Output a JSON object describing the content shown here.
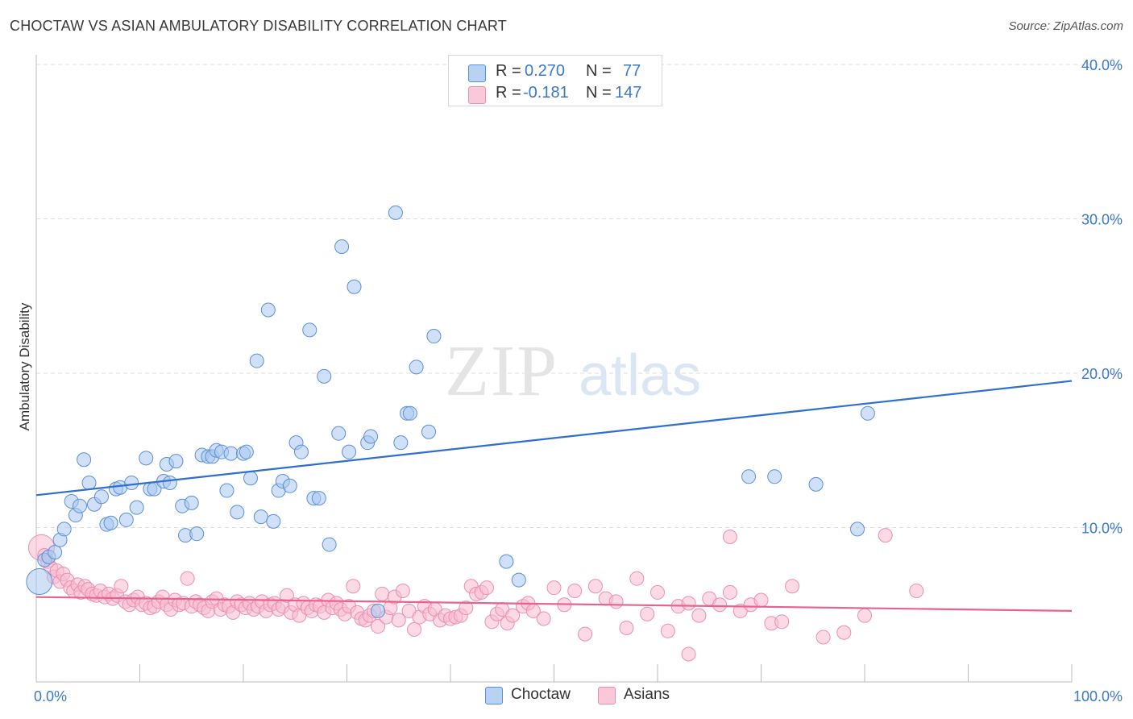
{
  "header": {
    "title": "CHOCTAW VS ASIAN AMBULATORY DISABILITY CORRELATION CHART",
    "source": "Source: ZipAtlas.com"
  },
  "watermark": {
    "zip": "ZIP",
    "atlas": "atlas"
  },
  "legend": {
    "rows": [
      {
        "r_label": "R =",
        "r_value": "0.270",
        "n_label": "N =",
        "n_value": "77"
      },
      {
        "r_label": "R =",
        "r_value": "-0.181",
        "n_label": "N =",
        "n_value": "147"
      }
    ]
  },
  "bottom_legend": {
    "items": [
      {
        "label": "Choctaw"
      },
      {
        "label": "Asians"
      }
    ]
  },
  "colors": {
    "choctaw_fill": "#a9c8f0",
    "choctaw_stroke": "#5b8fd6",
    "choctaw_line": "#2f6fd0",
    "asians_fill": "#f7bcd0",
    "asians_stroke": "#ea8fb0",
    "asians_line": "#e8628f",
    "tick_label": "#3a78c9",
    "grid": "#dddddd"
  },
  "chart_data": {
    "type": "scatter",
    "title": "CHOCTAW VS ASIAN AMBULATORY DISABILITY CORRELATION CHART",
    "xlabel": "",
    "ylabel": "Ambulatory Disability",
    "xlim": [
      0,
      100
    ],
    "ylim": [
      0,
      40
    ],
    "x_tick_labels": [
      "0.0%",
      "100.0%"
    ],
    "y_ticks": [
      10,
      20,
      30,
      40
    ],
    "y_tick_labels": [
      "10.0%",
      "20.0%",
      "30.0%",
      "40.0%"
    ],
    "grid": true,
    "legend_position": "top-center",
    "series": [
      {
        "name": "Choctaw",
        "r": 0.27,
        "n": 77,
        "trend": {
          "x": [
            0,
            100
          ],
          "y": [
            12.1,
            19.5
          ]
        },
        "points": [
          [
            0.3,
            6.5
          ],
          [
            0.8,
            7.9
          ],
          [
            1.2,
            8.1
          ],
          [
            1.8,
            8.4
          ],
          [
            2.3,
            9.2
          ],
          [
            2.7,
            9.9
          ],
          [
            3.4,
            11.7
          ],
          [
            3.8,
            10.8
          ],
          [
            4.2,
            11.4
          ],
          [
            4.6,
            14.4
          ],
          [
            5.1,
            12.9
          ],
          [
            5.6,
            11.5
          ],
          [
            6.3,
            12.0
          ],
          [
            6.8,
            10.2
          ],
          [
            7.2,
            10.3
          ],
          [
            7.7,
            12.5
          ],
          [
            8.1,
            12.6
          ],
          [
            8.7,
            10.5
          ],
          [
            9.2,
            12.9
          ],
          [
            9.7,
            11.3
          ],
          [
            10.6,
            14.5
          ],
          [
            11.0,
            12.5
          ],
          [
            11.4,
            12.5
          ],
          [
            12.3,
            13.0
          ],
          [
            12.6,
            14.1
          ],
          [
            12.9,
            12.9
          ],
          [
            13.5,
            14.3
          ],
          [
            14.1,
            11.4
          ],
          [
            14.4,
            9.5
          ],
          [
            15.0,
            11.6
          ],
          [
            15.5,
            9.6
          ],
          [
            16.0,
            14.7
          ],
          [
            16.6,
            14.6
          ],
          [
            17.0,
            14.6
          ],
          [
            17.4,
            15.0
          ],
          [
            17.9,
            14.9
          ],
          [
            18.4,
            12.4
          ],
          [
            18.8,
            14.8
          ],
          [
            19.4,
            11.0
          ],
          [
            20.0,
            14.8
          ],
          [
            20.3,
            14.9
          ],
          [
            20.7,
            13.2
          ],
          [
            21.3,
            20.8
          ],
          [
            21.7,
            10.7
          ],
          [
            22.4,
            24.1
          ],
          [
            22.9,
            10.4
          ],
          [
            23.4,
            12.4
          ],
          [
            23.8,
            13.0
          ],
          [
            24.5,
            12.7
          ],
          [
            25.1,
            15.5
          ],
          [
            25.6,
            14.9
          ],
          [
            26.4,
            22.8
          ],
          [
            26.8,
            11.9
          ],
          [
            27.3,
            11.9
          ],
          [
            27.8,
            19.8
          ],
          [
            28.3,
            8.9
          ],
          [
            29.2,
            16.1
          ],
          [
            29.5,
            28.2
          ],
          [
            30.2,
            14.9
          ],
          [
            30.7,
            25.6
          ],
          [
            32.0,
            15.5
          ],
          [
            32.3,
            15.9
          ],
          [
            33.0,
            4.6
          ],
          [
            34.7,
            30.4
          ],
          [
            35.2,
            15.5
          ],
          [
            35.8,
            17.4
          ],
          [
            36.1,
            17.4
          ],
          [
            36.7,
            20.4
          ],
          [
            37.9,
            16.2
          ],
          [
            38.4,
            22.4
          ],
          [
            45.4,
            7.8
          ],
          [
            46.6,
            6.6
          ],
          [
            71.3,
            13.3
          ],
          [
            75.3,
            12.8
          ],
          [
            79.3,
            9.9
          ],
          [
            80.3,
            17.4
          ],
          [
            68.8,
            13.3
          ]
        ]
      },
      {
        "name": "Asians",
        "r": -0.181,
        "n": 147,
        "trend": {
          "x": [
            0,
            100
          ],
          "y": [
            5.5,
            4.6
          ]
        },
        "points": [
          [
            0.5,
            8.7
          ],
          [
            0.8,
            8.2
          ],
          [
            1.1,
            7.8
          ],
          [
            1.4,
            7.4
          ],
          [
            1.7,
            6.8
          ],
          [
            2.0,
            7.2
          ],
          [
            2.3,
            6.5
          ],
          [
            2.6,
            7.0
          ],
          [
            3.0,
            6.6
          ],
          [
            3.3,
            6.1
          ],
          [
            3.6,
            5.9
          ],
          [
            4.0,
            6.3
          ],
          [
            4.3,
            5.8
          ],
          [
            4.7,
            6.2
          ],
          [
            5.0,
            6.0
          ],
          [
            5.4,
            5.7
          ],
          [
            5.8,
            5.6
          ],
          [
            6.2,
            5.9
          ],
          [
            6.6,
            5.5
          ],
          [
            7.0,
            5.7
          ],
          [
            7.4,
            5.4
          ],
          [
            7.8,
            5.6
          ],
          [
            8.2,
            6.2
          ],
          [
            8.6,
            5.2
          ],
          [
            9.0,
            5.0
          ],
          [
            9.4,
            5.3
          ],
          [
            9.8,
            5.5
          ],
          [
            10.2,
            5.0
          ],
          [
            10.6,
            5.1
          ],
          [
            11.0,
            4.8
          ],
          [
            11.4,
            4.9
          ],
          [
            11.8,
            5.2
          ],
          [
            12.2,
            5.5
          ],
          [
            12.6,
            5.0
          ],
          [
            13.0,
            4.7
          ],
          [
            13.4,
            5.3
          ],
          [
            13.8,
            5.0
          ],
          [
            14.2,
            5.1
          ],
          [
            14.6,
            6.7
          ],
          [
            15.0,
            4.9
          ],
          [
            15.4,
            5.2
          ],
          [
            15.8,
            5.0
          ],
          [
            16.2,
            4.8
          ],
          [
            16.6,
            4.6
          ],
          [
            17.0,
            5.2
          ],
          [
            17.4,
            5.4
          ],
          [
            17.8,
            4.7
          ],
          [
            18.2,
            5.0
          ],
          [
            18.6,
            4.9
          ],
          [
            19.0,
            4.5
          ],
          [
            19.4,
            5.2
          ],
          [
            19.8,
            5.0
          ],
          [
            20.2,
            4.8
          ],
          [
            20.6,
            5.1
          ],
          [
            21.0,
            4.7
          ],
          [
            21.4,
            4.9
          ],
          [
            21.8,
            5.2
          ],
          [
            22.2,
            4.6
          ],
          [
            22.6,
            5.0
          ],
          [
            23.0,
            5.1
          ],
          [
            23.4,
            4.7
          ],
          [
            23.8,
            4.9
          ],
          [
            24.2,
            5.6
          ],
          [
            24.6,
            4.5
          ],
          [
            25.0,
            5.0
          ],
          [
            25.4,
            4.3
          ],
          [
            25.8,
            5.1
          ],
          [
            26.2,
            4.8
          ],
          [
            26.6,
            4.6
          ],
          [
            27.0,
            5.0
          ],
          [
            27.4,
            4.9
          ],
          [
            27.8,
            4.5
          ],
          [
            28.2,
            5.3
          ],
          [
            28.6,
            4.8
          ],
          [
            29.0,
            5.1
          ],
          [
            29.4,
            4.7
          ],
          [
            29.8,
            4.4
          ],
          [
            30.2,
            4.9
          ],
          [
            30.6,
            6.2
          ],
          [
            31.0,
            4.5
          ],
          [
            31.4,
            4.1
          ],
          [
            31.8,
            4.0
          ],
          [
            32.2,
            4.3
          ],
          [
            32.6,
            4.6
          ],
          [
            33.0,
            3.6
          ],
          [
            33.4,
            5.7
          ],
          [
            33.8,
            4.2
          ],
          [
            34.2,
            4.8
          ],
          [
            34.6,
            5.5
          ],
          [
            35.0,
            4.0
          ],
          [
            35.4,
            5.9
          ],
          [
            36.0,
            4.6
          ],
          [
            36.5,
            3.4
          ],
          [
            37.0,
            4.2
          ],
          [
            37.5,
            4.9
          ],
          [
            38.0,
            4.4
          ],
          [
            38.5,
            4.7
          ],
          [
            39.0,
            4.0
          ],
          [
            39.5,
            4.3
          ],
          [
            40.0,
            4.1
          ],
          [
            40.5,
            4.2
          ],
          [
            41.0,
            4.3
          ],
          [
            41.5,
            4.8
          ],
          [
            42.0,
            6.2
          ],
          [
            42.5,
            5.7
          ],
          [
            43.0,
            5.8
          ],
          [
            43.5,
            6.1
          ],
          [
            44.0,
            3.9
          ],
          [
            44.5,
            4.4
          ],
          [
            45.0,
            4.7
          ],
          [
            45.5,
            3.8
          ],
          [
            46.0,
            4.3
          ],
          [
            47.0,
            4.9
          ],
          [
            47.5,
            5.1
          ],
          [
            48.0,
            4.6
          ],
          [
            49.0,
            4.1
          ],
          [
            50.0,
            6.1
          ],
          [
            51.0,
            5.0
          ],
          [
            52.0,
            5.9
          ],
          [
            53.0,
            3.1
          ],
          [
            54.0,
            6.2
          ],
          [
            55.0,
            5.4
          ],
          [
            56.0,
            5.2
          ],
          [
            57.0,
            3.5
          ],
          [
            58.0,
            6.7
          ],
          [
            59.0,
            4.4
          ],
          [
            60.0,
            5.8
          ],
          [
            61.0,
            3.3
          ],
          [
            62.0,
            4.9
          ],
          [
            63.0,
            5.1
          ],
          [
            64.0,
            4.3
          ],
          [
            65.0,
            5.4
          ],
          [
            66.0,
            5.0
          ],
          [
            67.0,
            5.8
          ],
          [
            68.0,
            4.6
          ],
          [
            69.0,
            5.0
          ],
          [
            70.0,
            5.3
          ],
          [
            71.0,
            3.8
          ],
          [
            72.0,
            3.9
          ],
          [
            73.0,
            6.2
          ],
          [
            76.0,
            2.9
          ],
          [
            78.0,
            3.2
          ],
          [
            80.0,
            4.3
          ],
          [
            82.0,
            9.5
          ],
          [
            85.0,
            5.9
          ],
          [
            63.0,
            1.8
          ],
          [
            67.0,
            9.4
          ]
        ]
      }
    ]
  }
}
